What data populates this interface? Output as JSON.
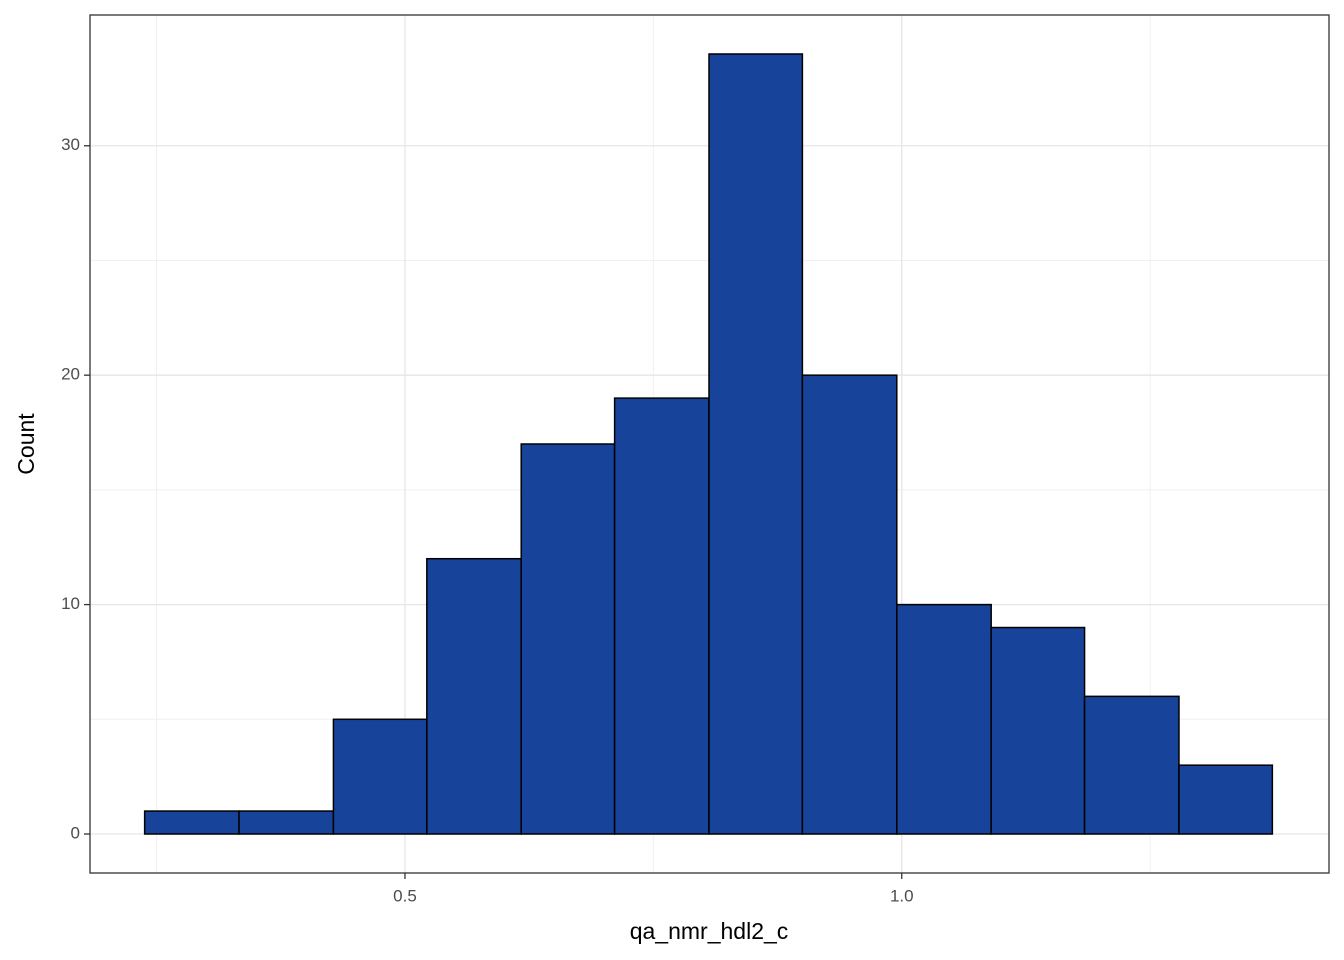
{
  "chart_data": {
    "type": "histogram",
    "x_label": "qa_nmr_hdl2_c",
    "y_label": "Count",
    "bins": [
      0.238,
      0.333,
      0.428,
      0.522,
      0.617,
      0.711,
      0.806,
      0.9,
      0.995,
      1.09,
      1.184,
      1.279,
      1.373
    ],
    "counts": [
      1,
      1,
      5,
      12,
      17,
      19,
      34,
      20,
      10,
      9,
      6,
      3
    ],
    "color": "#18439a",
    "edge_color": "#000000",
    "xlim": [
      0.183,
      1.43
    ],
    "ylim": [
      -1.7,
      35.7
    ],
    "xticks": [
      0.5,
      {
        "value": 1,
        "label": "1.0"
      }
    ],
    "yticks": [
      0,
      10,
      20,
      30
    ],
    "x_minor_grid": [
      0.25,
      0.75,
      1.25
    ],
    "y_minor_grid": [
      5,
      15,
      25
    ],
    "grid": true
  }
}
